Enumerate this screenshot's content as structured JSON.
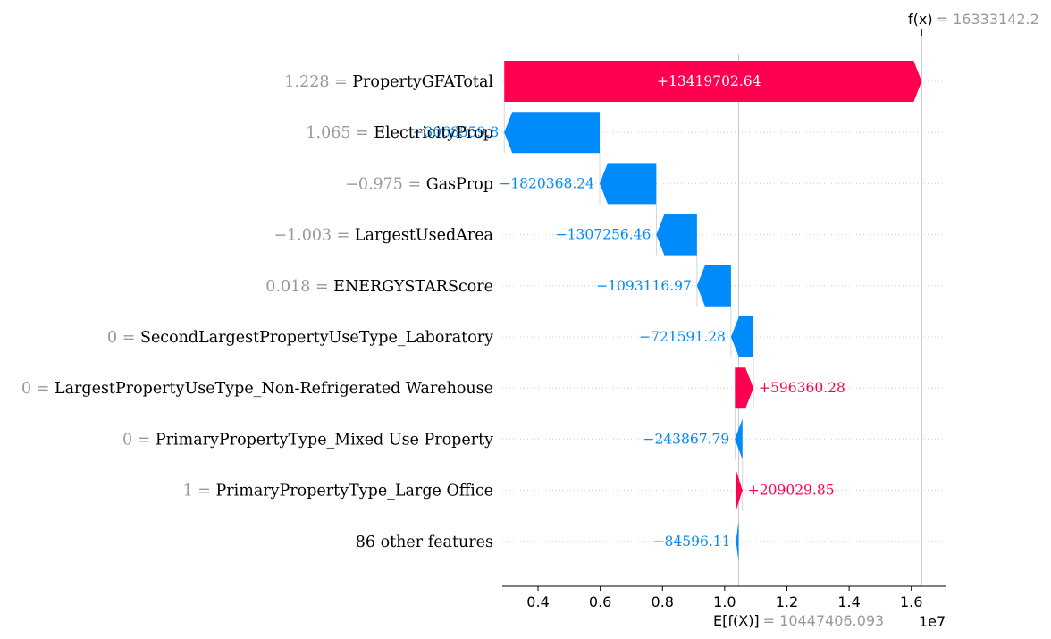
{
  "chart_data": {
    "type": "waterfall",
    "expected_value_label": "E[f(X)]",
    "expected_value_text": "10447406.093",
    "base_value": 10447406.093,
    "output_value_label": "f(x)",
    "output_value_text": "16333142.2",
    "output_value": 16333142.2,
    "features": [
      {
        "value_text": "1.228",
        "name": "PropertyGFATotal",
        "contribution": 13419702.64,
        "label": "+13419702.64"
      },
      {
        "value_text": "1.065",
        "name": "ElectricityProp",
        "contribution": -3068559.8,
        "label": "−3068559.8"
      },
      {
        "value_text": "−0.975",
        "name": "GasProp",
        "contribution": -1820368.24,
        "label": "−1820368.24"
      },
      {
        "value_text": "−1.003",
        "name": "LargestUsedArea",
        "contribution": -1307256.46,
        "label": "−1307256.46"
      },
      {
        "value_text": "0.018",
        "name": "ENERGYSTARScore",
        "contribution": -1093116.97,
        "label": "−1093116.97"
      },
      {
        "value_text": "0",
        "name": "SecondLargestPropertyUseType_Laboratory",
        "contribution": -721591.28,
        "label": "−721591.28"
      },
      {
        "value_text": "0",
        "name": "LargestPropertyUseType_Non-Refrigerated Warehouse",
        "contribution": 596360.28,
        "label": "+596360.28"
      },
      {
        "value_text": "0",
        "name": "PrimaryPropertyType_Mixed Use Property",
        "contribution": -243867.79,
        "label": "−243867.79"
      },
      {
        "value_text": "1",
        "name": "PrimaryPropertyType_Large Office",
        "contribution": 209029.85,
        "label": "+209029.85"
      },
      {
        "value_text": "",
        "name": "86 other features",
        "contribution": -84596.11,
        "label": "−84596.11"
      }
    ],
    "x_ticks": [
      "0.4",
      "0.6",
      "0.8",
      "1.0",
      "1.2",
      "1.4",
      "1.6"
    ],
    "x_tick_values": [
      4000000,
      6000000,
      8000000,
      10000000,
      12000000,
      14000000,
      16000000
    ],
    "x_scale_label": "1e7",
    "xlim": [
      2850000,
      17100000
    ],
    "colors": {
      "positive": "#ff0051",
      "negative": "#008bfb",
      "muted": "#999999",
      "grid": "#cccccc"
    }
  }
}
